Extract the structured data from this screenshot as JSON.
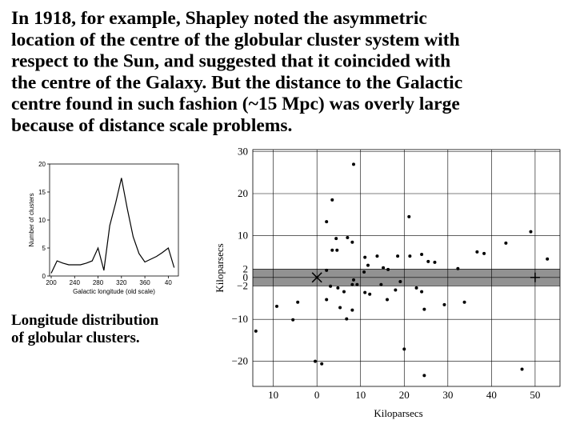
{
  "paragraph": [
    "In 1918, for example, Shapley noted the asymmetric",
    "location of the centre of the globular cluster system with",
    "respect to the Sun, and suggested that it coincided with",
    "the centre of the Galaxy. But the distance to the Galactic",
    "centre found in such fashion (~15 Mpc) was overly large",
    "because of distance scale problems."
  ],
  "caption": [
    "Longitude distribution",
    "of globular clusters."
  ],
  "chart_data": [
    {
      "type": "line",
      "xlabel": "Galactic longitude (old scale)",
      "ylabel": "Number of clusters",
      "categories": [
        "200",
        null,
        null,
        null,
        "240",
        null,
        null,
        null,
        "280",
        null,
        null,
        null,
        "320",
        null,
        null,
        null,
        "360",
        null,
        null,
        null,
        "40",
        null
      ],
      "values": [
        0.5,
        2.7,
        2.3,
        2,
        2,
        2,
        2.3,
        2.7,
        5,
        1,
        9,
        13,
        17.5,
        12,
        7,
        4,
        2.5,
        3,
        3.5,
        4.2,
        5,
        1.5
      ],
      "color": "#000000",
      "ylim": [
        0,
        20
      ],
      "yticks": [
        0,
        5,
        10,
        15,
        20
      ],
      "grid": false
    },
    {
      "type": "scatter",
      "xlabel": "Kiloparsecs",
      "ylabel": "Kiloparsecs",
      "series": [
        {
          "color": "#000000",
          "x": [
            8.4,
            3.5,
            2.2,
            21.1,
            4.4,
            7,
            8.1,
            3.5,
            4.6,
            11,
            13.8,
            18.5,
            21.3,
            24,
            25.5,
            27,
            36.7,
            38.3,
            43.3,
            49,
            52.8,
            32.3,
            11.7,
            10.8,
            15.2,
            16.3,
            2.2,
            8.4,
            19.1,
            3.1,
            4.8,
            8.1,
            9.2,
            11,
            12.1,
            14.7,
            18,
            22.8,
            24,
            6.2,
            5.3,
            8.1,
            6.8,
            2.2,
            16.1,
            24.6,
            29.2,
            33.8,
            -9.2,
            -4.4,
            -5.5,
            -14,
            20,
            -0.4,
            1.1,
            24.6,
            47
          ],
          "y": [
            27,
            18.5,
            13.3,
            14.5,
            9.3,
            9.5,
            8.4,
            6.5,
            6.5,
            4.8,
            5.1,
            5.1,
            5.1,
            5.5,
            3.8,
            3.6,
            6.1,
            5.7,
            8.2,
            10.9,
            4.4,
            2.1,
            2.9,
            1.3,
            2.3,
            1.9,
            1.7,
            -0.6,
            -1,
            -2.1,
            -2.5,
            -1.7,
            -1.7,
            -3.6,
            -4,
            -1.7,
            -3,
            -2.5,
            -3.4,
            -3.4,
            -7.2,
            -7.8,
            -9.9,
            -5.3,
            -5.3,
            -7.6,
            -6.5,
            -5.9,
            -6.9,
            -5.9,
            -10.1,
            -12.8,
            -17.1,
            -20,
            -20.6,
            -23.4,
            -21.9
          ]
        }
      ],
      "band": [
        -2,
        2
      ],
      "sun": {
        "x": 0,
        "y": 0
      },
      "center": {
        "x": 50,
        "y": 0
      },
      "xlim": [
        -14.7,
        55.7
      ],
      "ylim": [
        -26,
        30.5
      ],
      "xticks": [
        {
          "value": -10,
          "label": "10"
        },
        0,
        10,
        20,
        30,
        40,
        50
      ],
      "yticks": [
        30,
        20,
        10,
        2,
        0,
        {
          "value": -2,
          "label": "−2"
        },
        {
          "value": -10,
          "label": "−10"
        },
        {
          "value": -20,
          "label": "−20"
        }
      ],
      "grid": true
    }
  ]
}
